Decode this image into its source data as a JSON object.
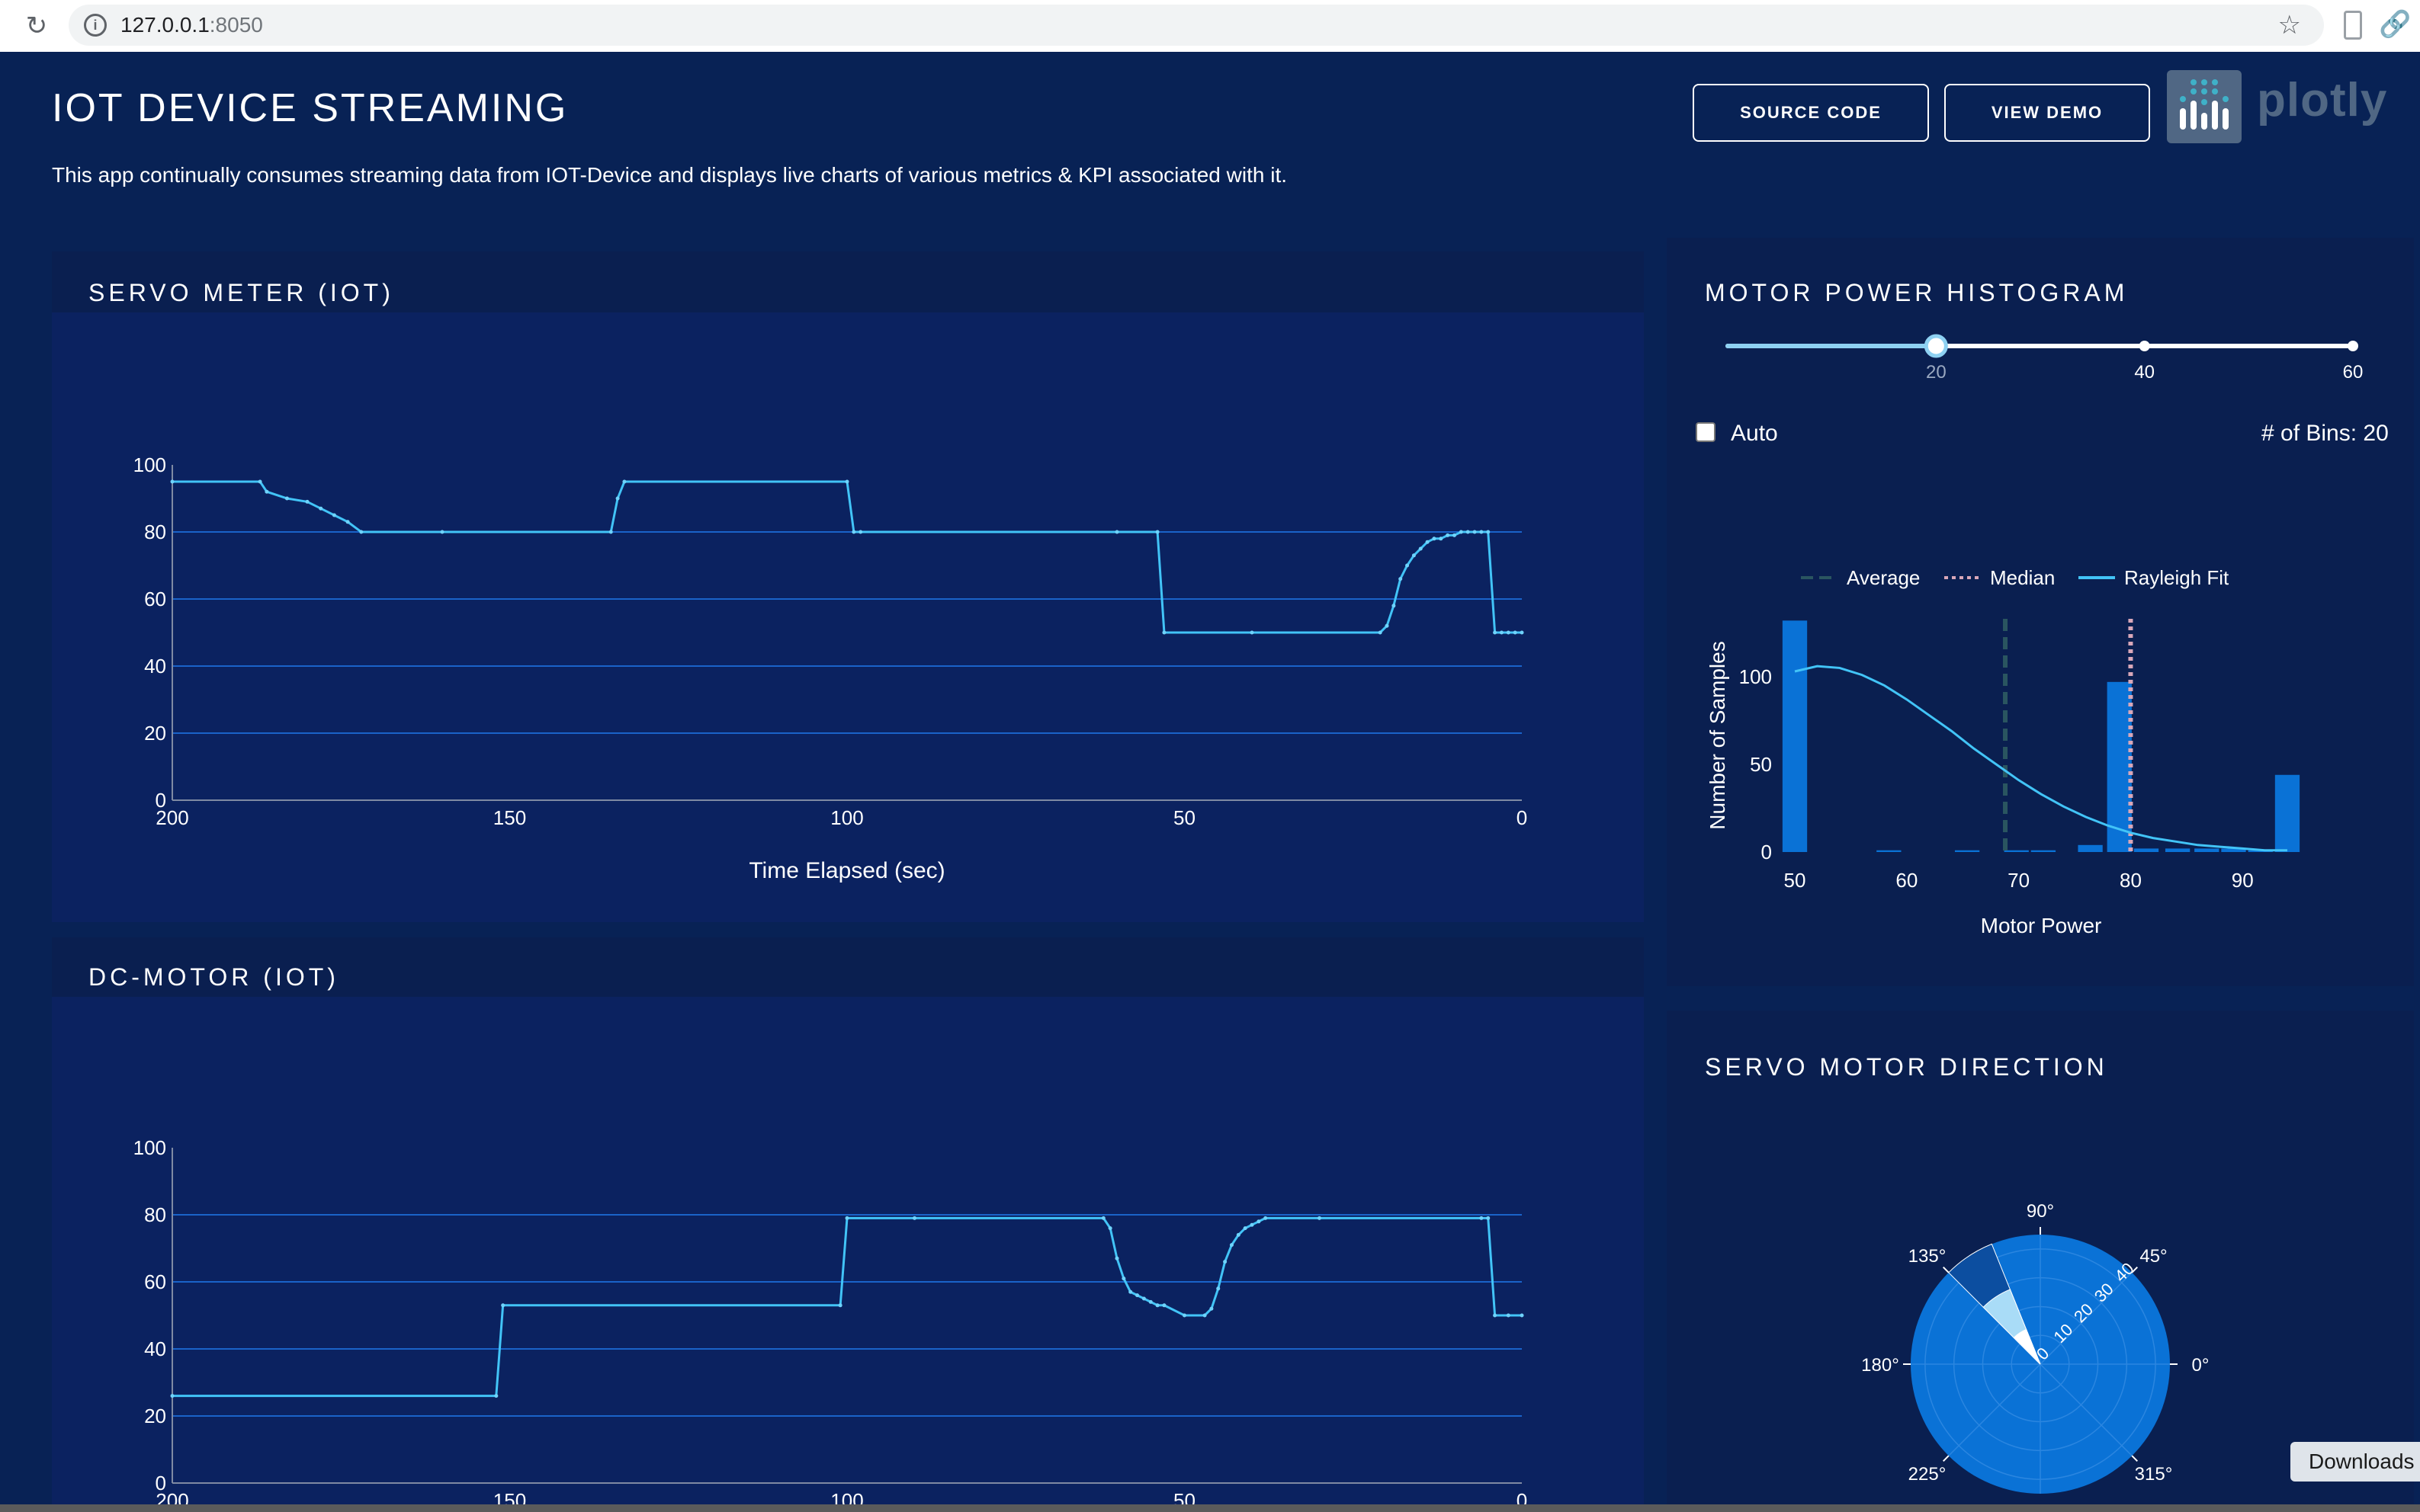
{
  "browser": {
    "url_host": "127.0.0.1",
    "url_port": ":8050"
  },
  "header": {
    "title": "IOT DEVICE STREAMING",
    "description": "This app continually consumes streaming data from IOT-Device and displays live charts of various metrics & KPI associated with it.",
    "source_code_label": "SOURCE CODE",
    "view_demo_label": "VIEW DEMO",
    "logo_text": "plotly"
  },
  "servo_meter": {
    "title": "SERVO METER (IOT)"
  },
  "dc_motor": {
    "title": "DC-MOTOR (IOT)"
  },
  "histogram": {
    "title": "MOTOR POWER HISTOGRAM",
    "slider": {
      "value": 20,
      "marks": [
        "20",
        "40",
        "60"
      ]
    },
    "auto_label": "Auto",
    "auto_checked": false,
    "bins_label": "# of Bins: 20"
  },
  "direction": {
    "title": "SERVO MOTOR DIRECTION"
  },
  "downloads_label": "Downloads",
  "colors": {
    "background": "#082255",
    "panel": "#0a1f50",
    "plot": "#0b2260",
    "line": "#42c4f7",
    "bar": "#0a72d6"
  },
  "chart_data": [
    {
      "id": "servo",
      "type": "line",
      "xlabel": "Time Elapsed (sec)",
      "ylabel": "",
      "xlim": [
        200,
        0
      ],
      "ylim": [
        0,
        100
      ],
      "x_ticks": [
        "200",
        "150",
        "100",
        "50",
        "0"
      ],
      "y_ticks": [
        "0",
        "20",
        "40",
        "60",
        "80",
        "100"
      ],
      "x": [
        200,
        187,
        186,
        183,
        180,
        178,
        176,
        174,
        172,
        160,
        135,
        134,
        133,
        100,
        99,
        98,
        60,
        54,
        53,
        40,
        21,
        20,
        19,
        18,
        17,
        16,
        15,
        14,
        13,
        12,
        11,
        10,
        9,
        8,
        7,
        6,
        5,
        4,
        3,
        2,
        1,
        0
      ],
      "y": [
        95,
        95,
        92,
        90,
        89,
        87,
        85,
        83,
        80,
        80,
        80,
        90,
        95,
        95,
        80,
        80,
        80,
        80,
        50,
        50,
        50,
        52,
        58,
        66,
        70,
        73,
        75,
        77,
        78,
        78,
        79,
        79,
        80,
        80,
        80,
        80,
        80,
        50,
        50,
        50,
        50,
        50
      ]
    },
    {
      "id": "dcmotor",
      "type": "line",
      "xlabel": "",
      "ylabel": "",
      "xlim": [
        200,
        0
      ],
      "ylim": [
        0,
        100
      ],
      "x_ticks": [
        "200",
        "150",
        "100",
        "50",
        "0"
      ],
      "y_ticks": [
        "0",
        "20",
        "40",
        "60",
        "80",
        "100"
      ],
      "x": [
        200,
        152,
        151,
        101,
        100,
        90,
        62,
        61,
        60,
        59,
        58,
        57,
        56,
        55,
        54,
        53,
        50,
        47,
        46,
        45,
        44,
        43,
        42,
        41,
        40,
        39,
        38,
        30,
        6,
        5,
        4,
        2,
        0
      ],
      "y": [
        26,
        26,
        53,
        53,
        79,
        79,
        79,
        76,
        67,
        61,
        57,
        56,
        55,
        54,
        53,
        53,
        50,
        50,
        52,
        58,
        66,
        71,
        74,
        76,
        77,
        78,
        79,
        79,
        79,
        79,
        50,
        50,
        50
      ]
    },
    {
      "id": "histogram",
      "type": "bar",
      "xlabel": "Motor Power",
      "ylabel": "Number of Samples",
      "xlim": [
        48.5,
        95.5
      ],
      "ylim": [
        0,
        133
      ],
      "x_ticks": [
        "50",
        "60",
        "70",
        "80",
        "90"
      ],
      "y_ticks": [
        "0",
        "50",
        "100"
      ],
      "bar_width": 2.2,
      "bars": [
        {
          "x": 50,
          "y": 132
        },
        {
          "x": 58.4,
          "y": 1
        },
        {
          "x": 65.4,
          "y": 1
        },
        {
          "x": 69.8,
          "y": 1
        },
        {
          "x": 72.2,
          "y": 1
        },
        {
          "x": 76.4,
          "y": 4
        },
        {
          "x": 79,
          "y": 97
        },
        {
          "x": 81.4,
          "y": 2
        },
        {
          "x": 84.2,
          "y": 2
        },
        {
          "x": 86.8,
          "y": 2
        },
        {
          "x": 89.2,
          "y": 2
        },
        {
          "x": 91.6,
          "y": 1
        },
        {
          "x": 94,
          "y": 44
        }
      ],
      "series": [
        {
          "name": "Average",
          "x": 68.8,
          "style": "dash",
          "color": "#2a5560"
        },
        {
          "name": "Median",
          "x": 80,
          "style": "dot",
          "color": "#d8a7b9"
        },
        {
          "name": "Rayleigh Fit",
          "style": "solid",
          "color": "#42c4f7",
          "x": [
            50,
            52,
            54,
            56,
            58,
            60,
            62,
            64,
            66,
            68,
            70,
            72,
            74,
            76,
            78,
            80,
            82,
            84,
            86,
            88,
            90,
            92,
            94
          ],
          "y": [
            103,
            106,
            105,
            101,
            95,
            87,
            78,
            69,
            59,
            50,
            41,
            33,
            26,
            20,
            15,
            11,
            8,
            6,
            4,
            3,
            2,
            1,
            1
          ]
        }
      ],
      "legend_position": "top"
    },
    {
      "id": "direction",
      "type": "polar",
      "angular_ticks": [
        "0°",
        "45°",
        "90°",
        "135°",
        "180°",
        "225°",
        "315°"
      ],
      "radial_ticks": [
        "0",
        "10",
        "20",
        "30",
        "40"
      ],
      "radial_range": [
        0,
        45
      ],
      "sectors": [
        {
          "theta_start": 112,
          "theta_end": 135,
          "r": 28,
          "color": "#a9dcf7"
        },
        {
          "theta_start": 112,
          "theta_end": 135,
          "r": 45,
          "color": "#0c4ea0"
        },
        {
          "theta_start": 112,
          "theta_end": 135,
          "r": 13,
          "color": "#ffffff"
        }
      ]
    }
  ]
}
